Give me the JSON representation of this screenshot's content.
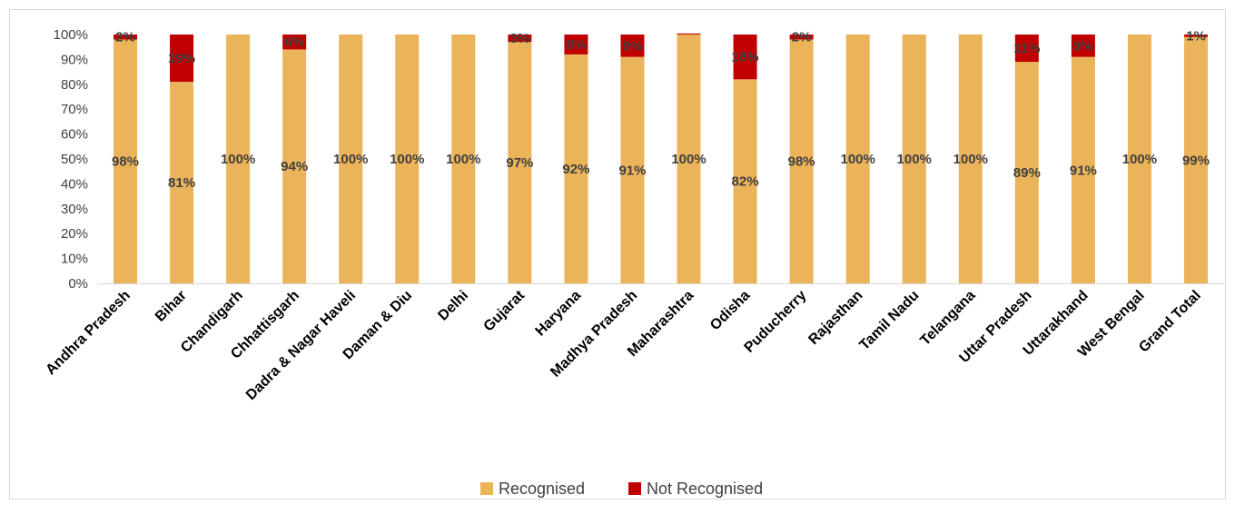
{
  "chart_data": {
    "type": "bar",
    "stacked": true,
    "categories": [
      "Andhra Pradesh",
      "Bihar",
      "Chandigarh",
      "Chhattisgarh",
      "Dadra & Nagar Haveli",
      "Daman & Diu",
      "Delhi",
      "Gujarat",
      "Haryana",
      "Madhya Pradesh",
      "Maharashtra",
      "Odisha",
      "Puducherry",
      "Rajasthan",
      "Tamil Nadu",
      "Telangana",
      "Uttar Pradesh",
      "Uttarakhand",
      "West Bengal",
      "Grand Total"
    ],
    "series": [
      {
        "name": "Recognised",
        "color": "#EBB35A",
        "values": [
          98,
          81,
          100,
          94,
          100,
          100,
          100,
          97,
          92,
          91,
          100,
          82,
          98,
          100,
          100,
          100,
          89,
          91,
          100,
          99
        ],
        "labels": [
          "98%",
          "81%",
          "100%",
          "94%",
          "100%",
          "100%",
          "100%",
          "97%",
          "92%",
          "91%",
          "100%",
          "82%",
          "98%",
          "100%",
          "100%",
          "100%",
          "89%",
          "91%",
          "100%",
          "99%"
        ]
      },
      {
        "name": "Not Recognised",
        "color": "#C00000",
        "values": [
          2,
          19,
          0,
          6,
          0,
          0,
          0,
          3,
          8,
          9,
          0.4,
          18,
          2,
          0,
          0,
          0,
          11,
          9,
          0,
          1
        ],
        "labels": [
          "2%",
          "19%",
          "",
          "6%",
          "",
          "",
          "",
          "3%",
          "8%",
          "9%",
          "",
          "18%",
          "2%",
          "",
          "",
          "",
          "11%",
          "9%",
          "",
          "1%"
        ]
      }
    ],
    "yticks": [
      "0%",
      "10%",
      "20%",
      "30%",
      "40%",
      "50%",
      "60%",
      "70%",
      "80%",
      "90%",
      "100%"
    ],
    "ylim": [
      0,
      100
    ],
    "grid": false,
    "legend": "bottom"
  }
}
